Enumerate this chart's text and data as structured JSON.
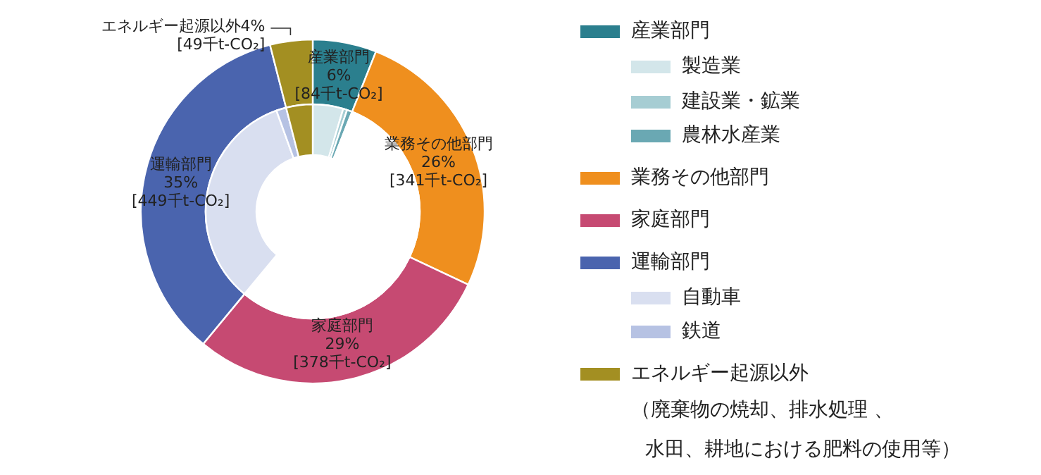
{
  "chart_data": [
    {
      "type": "donut",
      "categories": [
        "産業部門",
        "業務その他部門",
        "家庭部門",
        "運輸部門",
        "エネルギー起源以外"
      ],
      "values": [
        6,
        26,
        29,
        35,
        4
      ],
      "value_labels": [
        "6%",
        "26%",
        "29%",
        "35%",
        "4%"
      ],
      "colors": [
        "#2b7f8e",
        "#ef8f1e",
        "#c64a72",
        "#4a64ae",
        "#a38f22"
      ],
      "legend": "right",
      "annotations": [
        "[84千t-CO₂]",
        "[341千t-CO₂]",
        "[378千t-CO₂]",
        "[449千t-CO₂]",
        "[49千t-CO₂]",
        "（廃棄物の焼却、排水処理 、",
        "水田、耕地における肥料の使用等）"
      ]
    },
    {
      "type": "donut",
      "categories": [
        "製造業",
        "建設業・鉱業",
        "農林水産業",
        null,
        null,
        "自動車",
        "鉄道",
        null
      ],
      "values": [
        4.6,
        0.6,
        0.8,
        26,
        29,
        33.5,
        1.5,
        4
      ],
      "colors": [
        "#d3e6ea",
        "#a6cdd3",
        "#6aa8b3",
        "#ffffff",
        "#ffffff",
        "#d9dff0",
        "#b6c2e3",
        "#a38f22"
      ],
      "legend": "right"
    }
  ]
}
